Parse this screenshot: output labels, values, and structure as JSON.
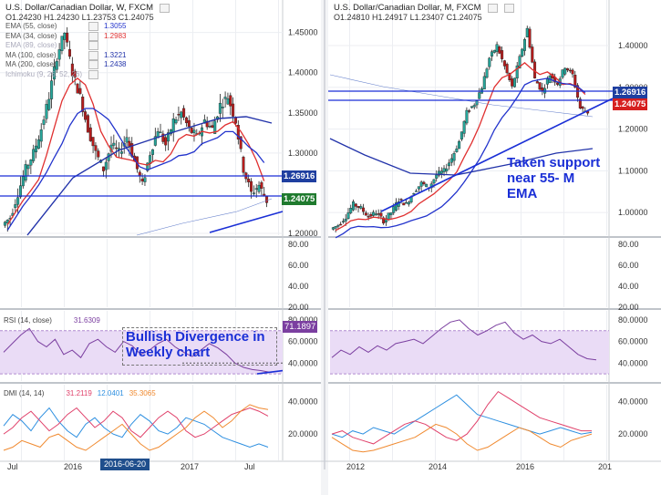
{
  "colors": {
    "candle_up": "#26a69a",
    "candle_down": "#b71c1c",
    "ema55": "#2233cc",
    "ema34": "#e03030",
    "ma100": "#2233aa",
    "ma200": "#6680cc",
    "support_line": "#1a2fd6",
    "rsi": "#7b3fa0",
    "rsi_band": "#eadcf6",
    "dmi_plus": "#2d8fe0",
    "dmi_minus": "#e0406a",
    "adx": "#f08a30",
    "annotation": "#1a2fd6",
    "tag_blue": "#1f3fa0",
    "tag_green": "#1f7a2e",
    "tag_red": "#d62020"
  },
  "left": {
    "title": "U.S. Dollar/Canadian Dollar, W, FXCM",
    "ohlc": "O1.24230  H1.24230  L1.23753  C1.24075",
    "indicators": [
      {
        "label": "EMA (55, close)",
        "value": "1.3055",
        "color": "#2233cc"
      },
      {
        "label": "EMA (34, close)",
        "value": "1.2983",
        "color": "#e03030"
      },
      {
        "label": "EMA (89, close)",
        "value": "",
        "color": "#9aa3c8"
      },
      {
        "label": "MA (100, close)",
        "value": "1.3221",
        "color": "#2233aa"
      },
      {
        "label": "MA (200, close)",
        "value": "1.2438",
        "color": "#2233aa"
      },
      {
        "label": "Ichimoku (9, 26, 52, 26)",
        "value": "",
        "color": "#c0c0c0"
      }
    ],
    "price_tags": {
      "resistance": "1.26916",
      "last": "1.24075"
    },
    "annotation": "Bullish Divergence in Weekly chart",
    "rsi_label": "RSI (14, close)",
    "rsi_value": "31.6309",
    "rsi_tag": "71.1897",
    "dmi_label": "DMI (14, 14)",
    "dmi_values": [
      "31.2119",
      "12.0401",
      "35.3065"
    ],
    "time_labels": [
      "Jul",
      "2016",
      "2016-06-20",
      "2017",
      "Jul"
    ]
  },
  "right": {
    "title": "U.S. Dollar/Canadian Dollar, M, FXCM",
    "ohlc": "O1.24810  H1.24917  L1.23407  C1.24075",
    "price_tags": {
      "resistance": "1.26916",
      "last": "1.24075"
    },
    "annotation": "Taken support near 55- M EMA",
    "time_labels": [
      "2012",
      "2014",
      "2016",
      "201"
    ]
  },
  "chart_data": [
    {
      "type": "line",
      "title": "U.S. Dollar/Canadian Dollar, W, FXCM",
      "price_axis": [
        "1.45000",
        "1.40000",
        "1.35000",
        "1.30000",
        "1.20000"
      ],
      "ylim": [
        1.2,
        1.47
      ],
      "series": [
        {
          "name": "EMA (55, close)",
          "value": 1.3055
        },
        {
          "name": "EMA (34, close)",
          "value": 1.2983
        },
        {
          "name": "MA (100, close)",
          "value": 1.3221
        },
        {
          "name": "MA (200, close)",
          "value": 1.2438
        }
      ],
      "close_path": [
        1.22,
        1.25,
        1.28,
        1.3,
        1.33,
        1.37,
        1.42,
        1.45,
        1.4,
        1.37,
        1.33,
        1.3,
        1.28,
        1.31,
        1.3,
        1.32,
        1.29,
        1.26,
        1.3,
        1.33,
        1.31,
        1.34,
        1.35,
        1.33,
        1.32,
        1.34,
        1.33,
        1.36,
        1.37,
        1.34,
        1.28,
        1.25,
        1.26,
        1.24075
      ],
      "horizontal_levels": [
        1.26916,
        1.24075
      ],
      "rsi": {
        "label": "RSI (14, close)",
        "axis": [
          "80.0000",
          "60.0000",
          "40.0000"
        ],
        "value": 31.6309,
        "band": [
          30,
          70
        ],
        "tag": 71.1897
      },
      "rsi_lower_axis": [
        "80.00",
        "60.00",
        "40.00",
        "20.00"
      ],
      "dmi": {
        "label": "DMI (14, 14)",
        "axis": [
          "40.0000",
          "20.0000"
        ],
        "values": [
          31.2119,
          12.0401,
          35.3065
        ]
      },
      "time_labels": [
        "Jul",
        "2016",
        "2016-06-20",
        "2017",
        "Jul"
      ]
    },
    {
      "type": "line",
      "title": "U.S. Dollar/Canadian Dollar, M, FXCM",
      "price_axis": [
        "1.40000",
        "1.30000",
        "1.20000",
        "1.10000",
        "1.00000"
      ],
      "ylim": [
        0.95,
        1.47
      ],
      "close_path": [
        0.97,
        0.99,
        1.02,
        1.01,
        0.99,
        1.0,
        0.98,
        1.0,
        1.03,
        1.02,
        1.05,
        1.07,
        1.06,
        1.09,
        1.1,
        1.13,
        1.17,
        1.24,
        1.26,
        1.3,
        1.37,
        1.4,
        1.35,
        1.3,
        1.37,
        1.44,
        1.32,
        1.29,
        1.33,
        1.31,
        1.35,
        1.33,
        1.25,
        1.24075
      ],
      "horizontal_levels": [
        1.26916,
        1.24075
      ],
      "rsi_axis": [
        "80.0000",
        "60.0000",
        "40.0000"
      ],
      "dmi_axis": [
        "40.0000",
        "20.0000"
      ],
      "time_labels": [
        "2012",
        "2014",
        "2016",
        "201"
      ]
    }
  ]
}
